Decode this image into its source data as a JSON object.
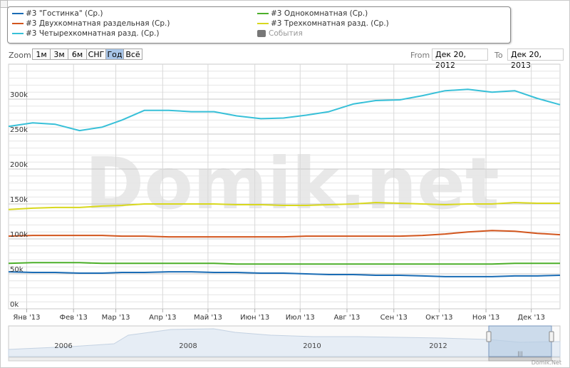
{
  "legend": [
    {
      "label": "#3 \"Гостинка\" (Ср.)",
      "color": "#1a6cb5",
      "type": "line"
    },
    {
      "label": "#3 Однокомнатная (Ср.)",
      "color": "#4caf2a",
      "type": "line"
    },
    {
      "label": "#3 Двухкомнатная раздельная (Ср.)",
      "color": "#d2561e",
      "type": "line"
    },
    {
      "label": "#3 Трехкомнатная разд. (Ср.)",
      "color": "#d8d81e",
      "type": "line"
    },
    {
      "label": "#3 Четырехкомнатная разд. (Ср.)",
      "color": "#38c0d8",
      "type": "line"
    },
    {
      "label": "События",
      "color": "#777777",
      "type": "flag"
    }
  ],
  "zoom": {
    "label": "Zoom",
    "buttons": [
      "1м",
      "3м",
      "6м",
      "СНГ",
      "Год",
      "Всё"
    ],
    "active": "Год"
  },
  "range": {
    "from_label": "From",
    "from_value": "Дек 20, 2012",
    "to_label": "To",
    "to_value": "Дек 20, 2013"
  },
  "watermark": "Domik.net",
  "credit": "Domik.Net",
  "chart_data": {
    "type": "line",
    "x": [
      "2012-12-20",
      "2013-01-05",
      "2013-01-20",
      "2013-02-05",
      "2013-02-20",
      "2013-03-05",
      "2013-03-20",
      "2013-04-05",
      "2013-04-20",
      "2013-05-05",
      "2013-05-20",
      "2013-06-05",
      "2013-06-20",
      "2013-07-05",
      "2013-07-20",
      "2013-08-05",
      "2013-08-20",
      "2013-09-05",
      "2013-09-20",
      "2013-10-05",
      "2013-10-20",
      "2013-11-05",
      "2013-11-20",
      "2013-12-05",
      "2013-12-20"
    ],
    "x_ticks": [
      {
        "label": "Янв '13",
        "date": "2013-01-01"
      },
      {
        "label": "Фев '13",
        "date": "2013-02-01"
      },
      {
        "label": "Мар '13",
        "date": "2013-03-01"
      },
      {
        "label": "Апр '13",
        "date": "2013-04-01"
      },
      {
        "label": "Май '13",
        "date": "2013-05-01"
      },
      {
        "label": "Июн '13",
        "date": "2013-06-01"
      },
      {
        "label": "Июл '13",
        "date": "2013-07-01"
      },
      {
        "label": "Авг '13",
        "date": "2013-08-01"
      },
      {
        "label": "Сен '13",
        "date": "2013-09-01"
      },
      {
        "label": "Окт '13",
        "date": "2013-10-01"
      },
      {
        "label": "Ноя '13",
        "date": "2013-11-01"
      },
      {
        "label": "Дек '13",
        "date": "2013-12-01"
      }
    ],
    "y_ticks": [
      {
        "label": "0k",
        "value": 0
      },
      {
        "label": "50k",
        "value": 50000
      },
      {
        "label": "100k",
        "value": 100000
      },
      {
        "label": "150k",
        "value": 150000
      },
      {
        "label": "200k",
        "value": 200000
      },
      {
        "label": "250k",
        "value": 250000
      },
      {
        "label": "300k",
        "value": 300000
      }
    ],
    "ylim": [
      0,
      350000
    ],
    "grid": true,
    "series": [
      {
        "name": "#3 Четырехкомнатная разд. (Ср.)",
        "color": "#38c0d8",
        "values": [
          261000,
          266000,
          264000,
          255000,
          260000,
          270000,
          284000,
          284000,
          282000,
          282000,
          276000,
          272000,
          273000,
          277000,
          282000,
          293000,
          298000,
          299000,
          305000,
          312000,
          314000,
          310000,
          312000,
          301000,
          292000
        ]
      },
      {
        "name": "#3 Трехкомнатная разд. (Ср.)",
        "color": "#d8d81e",
        "values": [
          142000,
          144000,
          145000,
          145000,
          147000,
          148000,
          150000,
          150000,
          150000,
          150000,
          149000,
          149000,
          148000,
          148000,
          149000,
          150000,
          152000,
          151000,
          150000,
          149000,
          150000,
          150000,
          152000,
          151000,
          151000
        ]
      },
      {
        "name": "#3 Двухкомнатная раздельная (Ср.)",
        "color": "#d2561e",
        "values": [
          104000,
          105000,
          105000,
          105000,
          105000,
          104000,
          104000,
          103000,
          103000,
          103000,
          103000,
          103000,
          103000,
          104000,
          104000,
          104000,
          104000,
          104000,
          105000,
          107000,
          110000,
          112000,
          111000,
          108000,
          106000
        ]
      },
      {
        "name": "#3 Однокомнатная (Ср.)",
        "color": "#4caf2a",
        "values": [
          65000,
          66000,
          66000,
          66000,
          65000,
          65000,
          65000,
          65000,
          65000,
          65000,
          64000,
          64000,
          64000,
          64000,
          64000,
          64000,
          64000,
          64000,
          64000,
          64000,
          64000,
          64000,
          65000,
          65000,
          65000
        ]
      },
      {
        "name": "#3 \"Гостинка\" (Ср.)",
        "color": "#1a6cb5",
        "values": [
          53000,
          52000,
          52000,
          51000,
          51000,
          52000,
          52000,
          53000,
          53000,
          52000,
          52000,
          51000,
          51000,
          50000,
          49000,
          49000,
          48000,
          48000,
          47000,
          46000,
          46000,
          46000,
          47000,
          47000,
          48000
        ]
      }
    ],
    "navigator": {
      "year_labels": [
        "2006",
        "2008",
        "2010",
        "2012"
      ],
      "selection": "Дек 2012 – Дек 2013"
    }
  }
}
